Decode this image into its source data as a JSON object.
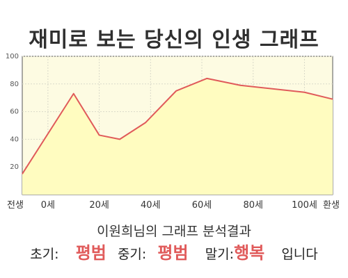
{
  "chart_data": {
    "type": "area",
    "title": "재미로 보는 당신의 인생 그래프",
    "x_categories": [
      "전생",
      "0세",
      "20세",
      "40세",
      "60세",
      "80세",
      "100세",
      "환생"
    ],
    "points": [
      {
        "x": "전생",
        "y": 15
      },
      {
        "x": 10,
        "y": 73
      },
      {
        "x": 20,
        "y": 43
      },
      {
        "x": 28,
        "y": 40
      },
      {
        "x": 38,
        "y": 52
      },
      {
        "x": 50,
        "y": 75
      },
      {
        "x": 62,
        "y": 84
      },
      {
        "x": 75,
        "y": 79
      },
      {
        "x": 100,
        "y": 74
      },
      {
        "x": "환생",
        "y": 69
      }
    ],
    "ylim": [
      0,
      100
    ],
    "yticks": [
      20,
      40,
      60,
      80,
      100
    ],
    "grid": true,
    "colors": {
      "line": "#e05a5a",
      "fill": "#fffcc0",
      "plot_background": "#fdfbe2",
      "grid": "#d9d9c9",
      "highlight": "#e05a5a"
    }
  },
  "summary": "이원희님의 그래프 분석결과",
  "stages": {
    "early_label": "초기:",
    "early_value": "평범",
    "middle_label": "중기:",
    "middle_value": "평범",
    "late_label": "말기:",
    "late_value": "행복",
    "suffix": "입니다"
  }
}
